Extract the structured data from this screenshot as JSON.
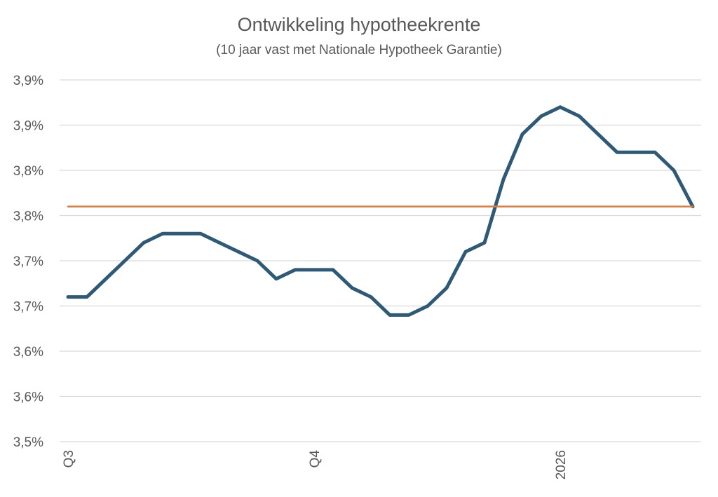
{
  "chart_data": {
    "type": "line",
    "title": "Ontwikkeling hypotheekrente",
    "subtitle": "(10 jaar vast met Nationale Hypotheek Garantie)",
    "xlabel": "",
    "ylabel": "",
    "grid": true,
    "legend": "none",
    "y_ticks": [
      "3,9%",
      "3,9%",
      "3,8%",
      "3,8%",
      "3,7%",
      "3,7%",
      "3,6%",
      "3,6%",
      "3,5%"
    ],
    "y_tick_values": [
      3.9,
      3.85,
      3.8,
      3.75,
      3.7,
      3.65,
      3.6,
      3.55,
      3.5
    ],
    "ylim": [
      3.5,
      3.9
    ],
    "x_ticks": [
      {
        "label": "Q3",
        "index": 0
      },
      {
        "label": "Q4",
        "index": 13
      },
      {
        "label": "2026",
        "index": 26
      }
    ],
    "n_points": 34,
    "series": [
      {
        "color": "#2e5a78",
        "values": [
          3.66,
          3.66,
          3.68,
          3.7,
          3.72,
          3.73,
          3.73,
          3.73,
          3.72,
          3.71,
          3.7,
          3.68,
          3.69,
          3.69,
          3.69,
          3.67,
          3.66,
          3.64,
          3.64,
          3.65,
          3.67,
          3.71,
          3.72,
          3.79,
          3.84,
          3.86,
          3.87,
          3.86,
          3.84,
          3.82,
          3.82,
          3.82,
          3.8,
          3.76
        ]
      },
      {
        "color": "#e07b3a",
        "values": [
          3.76,
          3.76
        ]
      }
    ]
  }
}
